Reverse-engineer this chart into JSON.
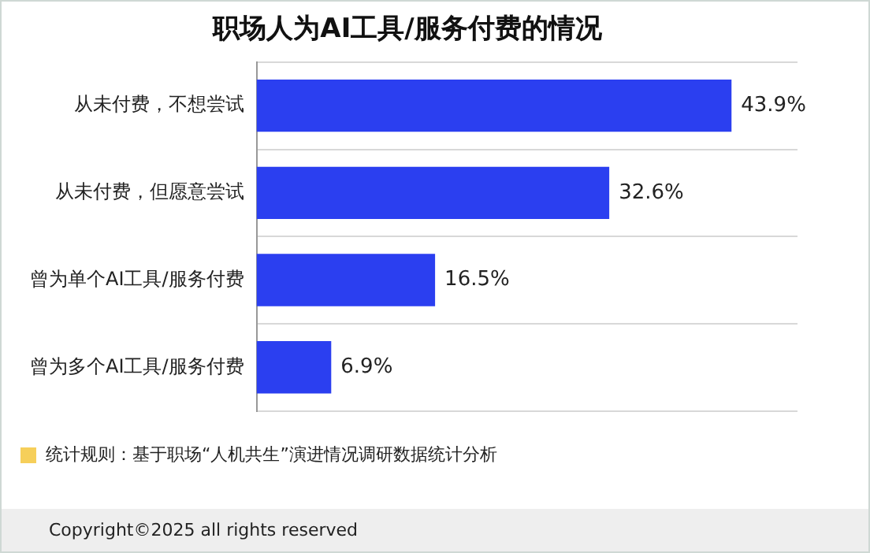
{
  "chart_data": {
    "type": "bar",
    "orientation": "horizontal",
    "title": "职场人为AI工具/服务付费的情况",
    "categories": [
      "从未付费，不想尝试",
      "从未付费，但愿意尝试",
      "曾为单个AI工具/服务付费",
      "曾为多个AI工具/服务付费"
    ],
    "values": [
      43.9,
      32.6,
      16.5,
      6.9
    ],
    "value_labels": [
      "43.9%",
      "32.6%",
      "16.5%",
      "6.9%"
    ],
    "color": "#2b3ff0",
    "grid": "y",
    "legend": false,
    "annotations": [
      "统计规则：基于职场“人机共生”演进情况调研数据统计分析",
      "Copyright©2025 all rights reserved"
    ]
  }
}
